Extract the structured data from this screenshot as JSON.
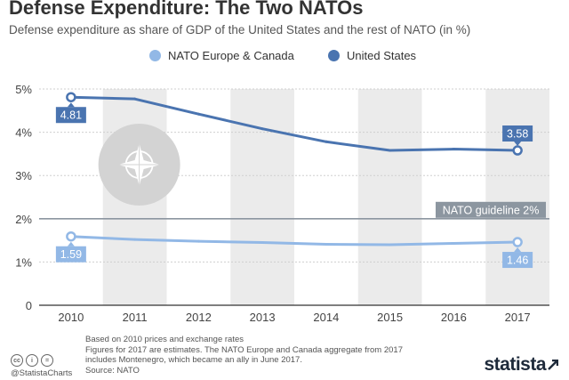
{
  "header": {
    "title": "Defense Expenditure: The Two NATOs",
    "subtitle": "Defense expenditure as share of GDP of the United States and the rest of NATO (in %)"
  },
  "legend": {
    "items": [
      {
        "label": "NATO Europe & Canada",
        "color": "#92b8e6"
      },
      {
        "label": "United States",
        "color": "#4a74b0"
      }
    ]
  },
  "chart_data": {
    "type": "line",
    "title": "Defense Expenditure: The Two NATOs",
    "subtitle": "Defense expenditure as share of GDP of the United States and the rest of NATO (in %)",
    "categories": [
      "2010",
      "2011",
      "2012",
      "2013",
      "2014",
      "2015",
      "2016",
      "2017"
    ],
    "y_ticks": [
      "0",
      "1%",
      "2%",
      "3%",
      "4%",
      "5%"
    ],
    "ylim": [
      0,
      5
    ],
    "grid": true,
    "legend_position": "top-center",
    "series": [
      {
        "name": "United States",
        "color": "#4a74b0",
        "values": [
          4.81,
          4.77,
          4.42,
          4.08,
          3.78,
          3.58,
          3.61,
          3.58
        ]
      },
      {
        "name": "NATO Europe & Canada",
        "color": "#92b8e6",
        "values": [
          1.59,
          1.52,
          1.48,
          1.45,
          1.41,
          1.4,
          1.43,
          1.46
        ]
      }
    ],
    "annotations": [
      {
        "series": "United States",
        "year": "2010",
        "text": "4.81"
      },
      {
        "series": "United States",
        "year": "2017",
        "text": "3.58"
      },
      {
        "series": "NATO Europe & Canada",
        "year": "2010",
        "text": "1.59"
      },
      {
        "series": "NATO Europe & Canada",
        "year": "2017",
        "text": "1.46"
      }
    ],
    "reference_line": {
      "value": 2,
      "label": "NATO guideline 2%"
    }
  },
  "footer": {
    "notes": [
      "Based on 2010 prices and exchange rates",
      "Figures for 2017 are estimates. The NATO Europe and Canada aggregate from 2017",
      "includes Montenegro, which became an ally in June 2017.",
      "Source: NATO"
    ],
    "handle": "@StatistaCharts",
    "brand": "statista",
    "license_icons": [
      "cc",
      "i",
      "="
    ]
  }
}
